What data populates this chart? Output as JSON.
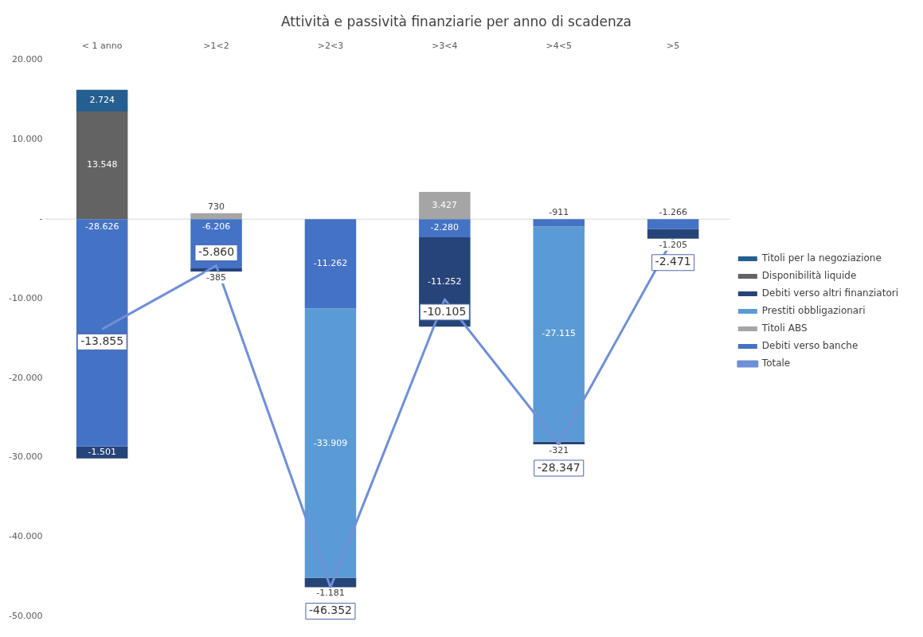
{
  "chart_data": {
    "type": "bar",
    "stacked": true,
    "title": "Attività e passività finanziarie per anno di scadenza",
    "categories": [
      "< 1 anno",
      ">1<2",
      ">2<3",
      ">3<4",
      ">4<5",
      ">5"
    ],
    "series": [
      {
        "name": "Debiti verso banche",
        "color": "#4472c4",
        "values": [
          -28626,
          -6206,
          -11262,
          -2280,
          -911,
          -1266
        ],
        "value_labels": [
          "-28.626",
          "-6.206",
          "-11.262",
          "-2.280",
          "-911",
          "-1.266"
        ]
      },
      {
        "name": "Titoli ABS",
        "color": "#a5a5a5",
        "values": [
          null,
          730,
          null,
          3427,
          null,
          null
        ],
        "value_labels": [
          null,
          "730",
          null,
          "3.427",
          null,
          null
        ]
      },
      {
        "name": "Prestiti obbligazionari",
        "color": "#5b9bd5",
        "values": [
          null,
          null,
          -33909,
          null,
          -27115,
          null
        ],
        "value_labels": [
          null,
          null,
          "-33.909",
          null,
          "-27.115",
          null
        ]
      },
      {
        "name": "Debiti verso altri finanziatori",
        "color": "#264478",
        "values": [
          -1501,
          -385,
          -1181,
          -11252,
          -321,
          -1205
        ],
        "value_labels": [
          "-1.501",
          "-385",
          "-1.181",
          "-11.252",
          "-321",
          "-1.205"
        ]
      },
      {
        "name": "Disponibilità liquide",
        "color": "#636363",
        "values": [
          13548,
          null,
          null,
          null,
          null,
          null
        ],
        "value_labels": [
          "13.548",
          null,
          null,
          null,
          null,
          null
        ]
      },
      {
        "name": "Titoli per la negoziazione",
        "color": "#255e91",
        "values": [
          2724,
          null,
          null,
          null,
          null,
          null
        ],
        "value_labels": [
          "2.724",
          null,
          null,
          null,
          null,
          null
        ]
      },
      {
        "name": "Totale",
        "type": "line",
        "color": "#6f8fd6",
        "values": [
          -13855,
          -5860,
          -46352,
          -10105,
          -28347,
          -2471
        ],
        "value_labels": [
          "-13.855",
          "-5.860",
          "-46.352",
          "-10.105",
          "-28.347",
          "-2.471"
        ]
      }
    ],
    "ylim": [
      -50000,
      20000
    ],
    "yticks": [
      {
        "value": -50000,
        "label": "-50.000"
      },
      {
        "value": -40000,
        "label": "-40.000"
      },
      {
        "value": -30000,
        "label": "-30.000"
      },
      {
        "value": -20000,
        "label": "-20.000"
      },
      {
        "value": -10000,
        "label": "-10.000"
      },
      {
        "value": 0,
        "label": "-"
      },
      {
        "value": 10000,
        "label": "10.000"
      },
      {
        "value": 20000,
        "label": "20.000"
      }
    ],
    "legend": "right",
    "marker": "none"
  }
}
